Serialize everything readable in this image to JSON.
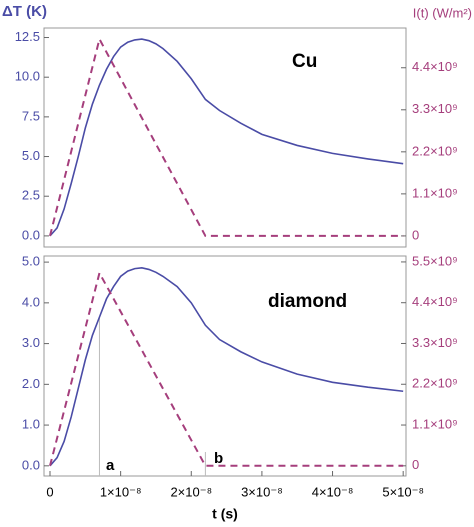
{
  "chart_data": [
    {
      "type": "line",
      "ylabel": "ΔT (K)",
      "y2label": "I(t) (W/m²)",
      "annotations": [
        "Cu"
      ],
      "xlim": [
        -8.5e-10,
        5.04e-08
      ],
      "ylim": [
        -0.7,
        13.1
      ],
      "yticks": [
        {
          "value": 0,
          "label": "0.0"
        },
        2.5,
        {
          "value": 5,
          "label": "5.0"
        },
        7.5,
        {
          "value": 10,
          "label": "10.0"
        },
        12.5
      ],
      "y2lim": [
        -290000000.0,
        5440000000.0
      ],
      "y2ticks": [
        {
          "value": 0,
          "label": "0"
        },
        {
          "value": 1100000000.0,
          "label": "1.1×10⁹"
        },
        {
          "value": 2200000000.0,
          "label": "2.2×10⁹"
        },
        {
          "value": 3300000000.0,
          "label": "3.3×10⁹"
        },
        {
          "value": 4400000000.0,
          "label": "4.4×10⁹"
        }
      ],
      "series": [
        {
          "color": "#4a4ca6",
          "dash": false,
          "x": [
            0,
            1e-09,
            2e-09,
            3e-09,
            4e-09,
            5e-09,
            6e-09,
            7e-09,
            8e-09,
            9e-09,
            1e-08,
            1.1e-08,
            1.2e-08,
            1.3e-08,
            1.4e-08,
            1.5e-08,
            1.6e-08,
            1.8e-08,
            2e-08,
            2.2e-08,
            2.4e-08,
            2.7e-08,
            3e-08,
            3.5e-08,
            4e-08,
            4.5e-08,
            5e-08
          ],
          "values": [
            0,
            0.5,
            1.7,
            3.3,
            5.0,
            6.8,
            8.3,
            9.5,
            10.5,
            11.3,
            11.9,
            12.2,
            12.35,
            12.4,
            12.3,
            12.1,
            11.8,
            11.0,
            9.9,
            8.6,
            7.9,
            7.1,
            6.4,
            5.7,
            5.2,
            4.85,
            4.55
          ]
        },
        {
          "color": "#a53e7c",
          "dash": true,
          "axis": "y2",
          "x": [
            0,
            7e-09,
            2.2e-08,
            5e-08
          ],
          "values": [
            0,
            5150000000.0,
            0,
            0
          ]
        }
      ]
    },
    {
      "type": "line",
      "annotations": [
        "diamond",
        "a",
        "b"
      ],
      "xlabel": "t (s)",
      "xlim": [
        -8.5e-10,
        5.04e-08
      ],
      "xticks": [
        {
          "value": 0,
          "label": "0"
        },
        {
          "value": 1e-08,
          "label": "1×10⁻⁸"
        },
        {
          "value": 2e-08,
          "label": "2×10⁻⁸"
        },
        {
          "value": 3e-08,
          "label": "3×10⁻⁸"
        },
        {
          "value": 4e-08,
          "label": "4×10⁻⁸"
        },
        {
          "value": 5e-08,
          "label": "5×10⁻⁸"
        }
      ],
      "ylim": [
        -0.25,
        5.15
      ],
      "yticks": [
        {
          "value": 0,
          "label": "0.0"
        },
        {
          "value": 1,
          "label": "1.0"
        },
        {
          "value": 2,
          "label": "2.0"
        },
        {
          "value": 3,
          "label": "3.0"
        },
        {
          "value": 4,
          "label": "4.0"
        },
        {
          "value": 5,
          "label": "5.0"
        }
      ],
      "y2lim": [
        -275000000.0,
        5660000000.0
      ],
      "y2ticks": [
        {
          "value": 0,
          "label": "0"
        },
        {
          "value": 1100000000.0,
          "label": "1.1×10⁹"
        },
        {
          "value": 2200000000.0,
          "label": "2.2×10⁹"
        },
        {
          "value": 3300000000.0,
          "label": "3.3×10⁹"
        },
        {
          "value": 4400000000.0,
          "label": "4.4×10⁹"
        },
        {
          "value": 5500000000.0,
          "label": "5.5×10⁹"
        }
      ],
      "series": [
        {
          "color": "#4a4ca6",
          "dash": false,
          "x": [
            0,
            1e-09,
            2e-09,
            3e-09,
            4e-09,
            5e-09,
            6e-09,
            7e-09,
            8e-09,
            9e-09,
            1e-08,
            1.1e-08,
            1.2e-08,
            1.3e-08,
            1.4e-08,
            1.5e-08,
            1.6e-08,
            1.8e-08,
            2e-08,
            2.2e-08,
            2.4e-08,
            2.7e-08,
            3e-08,
            3.5e-08,
            4e-08,
            4.5e-08,
            5e-08
          ],
          "values": [
            0,
            0.2,
            0.6,
            1.2,
            1.9,
            2.6,
            3.2,
            3.65,
            4.1,
            4.4,
            4.65,
            4.78,
            4.84,
            4.86,
            4.82,
            4.75,
            4.65,
            4.4,
            4.0,
            3.45,
            3.1,
            2.8,
            2.55,
            2.25,
            2.05,
            1.93,
            1.83
          ]
        },
        {
          "color": "#a53e7c",
          "dash": true,
          "axis": "y2",
          "x": [
            0,
            7e-09,
            2.2e-08,
            5e-08
          ],
          "values": [
            0,
            5200000000.0,
            0,
            0
          ]
        }
      ]
    }
  ]
}
